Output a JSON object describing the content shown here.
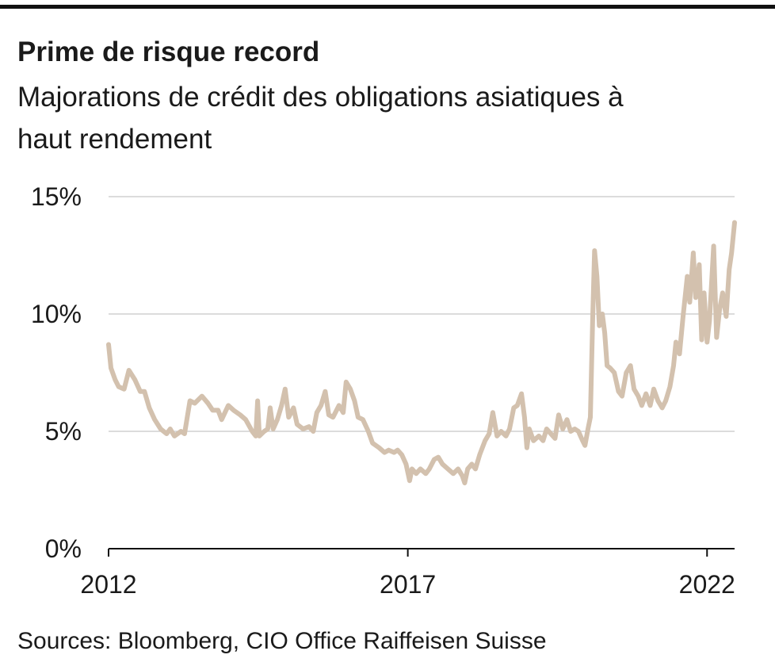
{
  "chart_data": {
    "type": "line",
    "title": "Prime de risque record",
    "subtitle": [
      "Majorations de crédit des obligations asiatiques à",
      "haut rendement"
    ],
    "source": "Sources: Bloomberg, CIO Office Raiffeisen Suisse",
    "color": "#d3c1ae",
    "x": [
      2012.0,
      2012.04,
      2012.11,
      2012.17,
      2012.26,
      2012.34,
      2012.44,
      2012.53,
      2012.6,
      2012.68,
      2012.77,
      2012.87,
      2012.97,
      2013.03,
      2013.1,
      2013.21,
      2013.27,
      2013.36,
      2013.44,
      2013.56,
      2013.66,
      2013.74,
      2013.83,
      2013.89,
      2014.0,
      2014.09,
      2014.2,
      2014.29,
      2014.4,
      2014.46,
      2014.49,
      2014.52,
      2014.6,
      2014.66,
      2014.7,
      2014.75,
      2014.82,
      2014.89,
      2014.95,
      2015.01,
      2015.09,
      2015.15,
      2015.25,
      2015.35,
      2015.42,
      2015.48,
      2015.55,
      2015.62,
      2015.68,
      2015.75,
      2015.85,
      2015.92,
      2015.97,
      2016.04,
      2016.11,
      2016.17,
      2016.25,
      2016.34,
      2016.41,
      2016.52,
      2016.61,
      2016.68,
      2016.77,
      2016.83,
      2016.9,
      2016.97,
      2017.03,
      2017.07,
      2017.14,
      2017.21,
      2017.3,
      2017.36,
      2017.44,
      2017.51,
      2017.58,
      2017.67,
      2017.76,
      2017.84,
      2017.91,
      2017.95,
      2018.0,
      2018.07,
      2018.13,
      2018.2,
      2018.29,
      2018.36,
      2018.42,
      2018.49,
      2018.56,
      2018.64,
      2018.7,
      2018.77,
      2018.83,
      2018.9,
      2018.95,
      2018.99,
      2019.03,
      2019.1,
      2019.19,
      2019.26,
      2019.32,
      2019.39,
      2019.46,
      2019.52,
      2019.59,
      2019.66,
      2019.72,
      2019.79,
      2019.85,
      2019.92,
      2019.96,
      2020.01,
      2020.05,
      2020.09,
      2020.12,
      2020.16,
      2020.2,
      2020.25,
      2020.29,
      2020.33,
      2020.38,
      2020.45,
      2020.52,
      2020.58,
      2020.65,
      2020.72,
      2020.78,
      2020.85,
      2020.91,
      2020.98,
      2021.05,
      2021.11,
      2021.18,
      2021.25,
      2021.31,
      2021.38,
      2021.44,
      2021.48,
      2021.54,
      2021.6,
      2021.67,
      2021.71,
      2021.77,
      2021.81,
      2021.87,
      2021.91,
      2021.95,
      2022.0,
      2022.04,
      2022.11,
      2022.16,
      2022.21,
      2022.26,
      2022.32,
      2022.37,
      2022.41,
      2022.46
    ],
    "values": [
      8.7,
      7.7,
      7.2,
      6.9,
      6.8,
      7.6,
      7.2,
      6.7,
      6.7,
      6.0,
      5.5,
      5.1,
      4.9,
      5.1,
      4.8,
      5.0,
      4.9,
      6.3,
      6.2,
      6.5,
      6.2,
      5.9,
      5.9,
      5.5,
      6.1,
      5.9,
      5.7,
      5.5,
      5.0,
      4.8,
      6.3,
      4.8,
      5.0,
      5.1,
      6.0,
      5.1,
      5.5,
      6.1,
      6.8,
      5.6,
      6.0,
      5.3,
      5.1,
      5.2,
      5.0,
      5.8,
      6.1,
      6.7,
      5.7,
      5.6,
      6.1,
      5.8,
      7.1,
      6.8,
      6.3,
      5.6,
      5.5,
      5.0,
      4.5,
      4.3,
      4.1,
      4.2,
      4.1,
      4.2,
      4.0,
      3.6,
      2.9,
      3.4,
      3.2,
      3.4,
      3.2,
      3.4,
      3.8,
      3.9,
      3.6,
      3.4,
      3.2,
      3.4,
      3.1,
      2.8,
      3.4,
      3.6,
      3.4,
      4.0,
      4.6,
      4.9,
      5.8,
      4.8,
      5.0,
      4.8,
      5.1,
      6.0,
      6.1,
      6.6,
      5.6,
      4.3,
      5.1,
      4.6,
      4.8,
      4.6,
      5.1,
      4.9,
      4.7,
      5.7,
      5.1,
      5.5,
      5.0,
      5.1,
      5.0,
      4.6,
      4.4,
      5.1,
      5.6,
      9.9,
      12.7,
      11.6,
      9.5,
      10.0,
      9.2,
      7.8,
      7.7,
      7.5,
      6.7,
      6.5,
      7.5,
      7.8,
      6.8,
      6.5,
      6.1,
      6.6,
      6.1,
      6.8,
      6.3,
      6.0,
      6.3,
      6.9,
      7.8,
      8.8,
      8.3,
      9.9,
      11.6,
      10.5,
      12.6,
      10.7,
      12.1,
      8.9,
      10.9,
      8.8,
      9.7,
      12.9,
      9.0,
      10.2,
      10.9,
      9.9,
      11.9,
      12.6,
      13.9
    ],
    "xlim": [
      2012,
      2022.46
    ],
    "xticks": [
      2012,
      2017,
      2022
    ],
    "ylim": [
      0,
      15
    ],
    "yticks": [
      {
        "value": 0,
        "label": "0%"
      },
      {
        "value": 5,
        "label": "5%"
      },
      {
        "value": 10,
        "label": "10%"
      },
      {
        "value": 15,
        "label": "15%"
      }
    ],
    "grid": true
  }
}
